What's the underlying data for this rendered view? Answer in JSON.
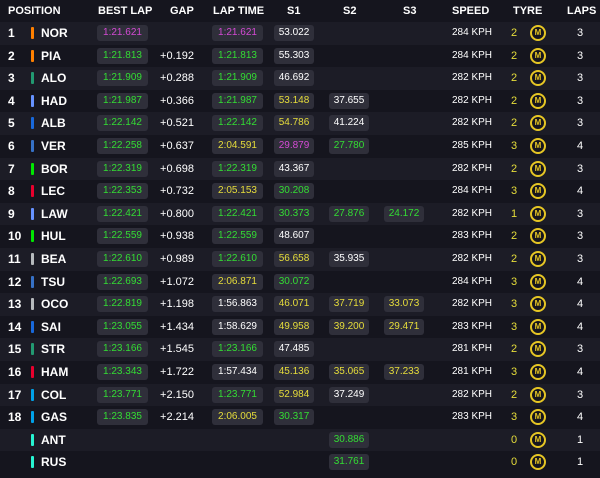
{
  "headers": {
    "position": "POSITION",
    "best_lap": "BEST LAP",
    "gap": "GAP",
    "lap_time": "LAP TIME",
    "s1": "S1",
    "s2": "S2",
    "s3": "S3",
    "speed": "SPEED",
    "tyre": "TYRE",
    "laps": "LAPS"
  },
  "colors": {
    "background": "#15151e",
    "personal_best": "#33dd33",
    "overall_best": "#d44ad4",
    "slower": "#e6dd3a",
    "normal": "#ffffff",
    "tyre_medium": "#e6c624"
  },
  "tyre_icon": "medium-compound-icon",
  "rows": [
    {
      "pos": "1",
      "driver": "NOR",
      "team_color": "#ff8000",
      "best": "1:21.621",
      "best_c": "purple",
      "gap": "",
      "lap": "1:21.621",
      "lap_c": "purple",
      "s1": "53.022",
      "s1_c": "white",
      "s2": "",
      "s2_c": "white",
      "s3": "",
      "s3_c": "white",
      "speed": "284 KPH",
      "tyre_age": "2",
      "tyre": "M",
      "laps": "3"
    },
    {
      "pos": "2",
      "driver": "PIA",
      "team_color": "#ff8000",
      "best": "1:21.813",
      "best_c": "green",
      "gap": "+0.192",
      "lap": "1:21.813",
      "lap_c": "green",
      "s1": "55.303",
      "s1_c": "white",
      "s2": "",
      "s2_c": "white",
      "s3": "",
      "s3_c": "white",
      "speed": "284 KPH",
      "tyre_age": "2",
      "tyre": "M",
      "laps": "3"
    },
    {
      "pos": "3",
      "driver": "ALO",
      "team_color": "#229971",
      "best": "1:21.909",
      "best_c": "green",
      "gap": "+0.288",
      "lap": "1:21.909",
      "lap_c": "green",
      "s1": "46.692",
      "s1_c": "white",
      "s2": "",
      "s2_c": "white",
      "s3": "",
      "s3_c": "white",
      "speed": "282 KPH",
      "tyre_age": "2",
      "tyre": "M",
      "laps": "3"
    },
    {
      "pos": "4",
      "driver": "HAD",
      "team_color": "#6692ff",
      "best": "1:21.987",
      "best_c": "green",
      "gap": "+0.366",
      "lap": "1:21.987",
      "lap_c": "green",
      "s1": "53.148",
      "s1_c": "yellow",
      "s2": "37.655",
      "s2_c": "white",
      "s3": "",
      "s3_c": "white",
      "speed": "282 KPH",
      "tyre_age": "2",
      "tyre": "M",
      "laps": "3"
    },
    {
      "pos": "5",
      "driver": "ALB",
      "team_color": "#1868db",
      "best": "1:22.142",
      "best_c": "green",
      "gap": "+0.521",
      "lap": "1:22.142",
      "lap_c": "green",
      "s1": "54.786",
      "s1_c": "yellow",
      "s2": "41.224",
      "s2_c": "white",
      "s3": "",
      "s3_c": "white",
      "speed": "282 KPH",
      "tyre_age": "2",
      "tyre": "M",
      "laps": "3"
    },
    {
      "pos": "6",
      "driver": "VER",
      "team_color": "#3671c6",
      "best": "1:22.258",
      "best_c": "green",
      "gap": "+0.637",
      "lap": "2:04.591",
      "lap_c": "yellow",
      "s1": "29.879",
      "s1_c": "purple",
      "s2": "27.780",
      "s2_c": "green",
      "s3": "",
      "s3_c": "white",
      "speed": "285 KPH",
      "tyre_age": "3",
      "tyre": "M",
      "laps": "4"
    },
    {
      "pos": "7",
      "driver": "BOR",
      "team_color": "#00e701",
      "best": "1:22.319",
      "best_c": "green",
      "gap": "+0.698",
      "lap": "1:22.319",
      "lap_c": "green",
      "s1": "43.367",
      "s1_c": "white",
      "s2": "",
      "s2_c": "white",
      "s3": "",
      "s3_c": "white",
      "speed": "282 KPH",
      "tyre_age": "2",
      "tyre": "M",
      "laps": "3"
    },
    {
      "pos": "8",
      "driver": "LEC",
      "team_color": "#e8002d",
      "best": "1:22.353",
      "best_c": "green",
      "gap": "+0.732",
      "lap": "2:05.153",
      "lap_c": "yellow",
      "s1": "30.208",
      "s1_c": "green",
      "s2": "",
      "s2_c": "white",
      "s3": "",
      "s3_c": "white",
      "speed": "284 KPH",
      "tyre_age": "3",
      "tyre": "M",
      "laps": "4"
    },
    {
      "pos": "9",
      "driver": "LAW",
      "team_color": "#6692ff",
      "best": "1:22.421",
      "best_c": "green",
      "gap": "+0.800",
      "lap": "1:22.421",
      "lap_c": "green",
      "s1": "30.373",
      "s1_c": "green",
      "s2": "27.876",
      "s2_c": "green",
      "s3": "24.172",
      "s3_c": "green",
      "speed": "282 KPH",
      "tyre_age": "1",
      "tyre": "M",
      "laps": "3"
    },
    {
      "pos": "10",
      "driver": "HUL",
      "team_color": "#00e701",
      "best": "1:22.559",
      "best_c": "green",
      "gap": "+0.938",
      "lap": "1:22.559",
      "lap_c": "green",
      "s1": "48.607",
      "s1_c": "white",
      "s2": "",
      "s2_c": "white",
      "s3": "",
      "s3_c": "white",
      "speed": "283 KPH",
      "tyre_age": "2",
      "tyre": "M",
      "laps": "3"
    },
    {
      "pos": "11",
      "driver": "BEA",
      "team_color": "#b6babd",
      "best": "1:22.610",
      "best_c": "green",
      "gap": "+0.989",
      "lap": "1:22.610",
      "lap_c": "green",
      "s1": "56.658",
      "s1_c": "yellow",
      "s2": "35.935",
      "s2_c": "white",
      "s3": "",
      "s3_c": "white",
      "speed": "282 KPH",
      "tyre_age": "2",
      "tyre": "M",
      "laps": "3"
    },
    {
      "pos": "12",
      "driver": "TSU",
      "team_color": "#3671c6",
      "best": "1:22.693",
      "best_c": "green",
      "gap": "+1.072",
      "lap": "2:06.871",
      "lap_c": "yellow",
      "s1": "30.072",
      "s1_c": "green",
      "s2": "",
      "s2_c": "white",
      "s3": "",
      "s3_c": "white",
      "speed": "284 KPH",
      "tyre_age": "3",
      "tyre": "M",
      "laps": "4"
    },
    {
      "pos": "13",
      "driver": "OCO",
      "team_color": "#b6babd",
      "best": "1:22.819",
      "best_c": "green",
      "gap": "+1.198",
      "lap": "1:56.863",
      "lap_c": "white",
      "s1": "46.071",
      "s1_c": "yellow",
      "s2": "37.719",
      "s2_c": "yellow",
      "s3": "33.073",
      "s3_c": "yellow",
      "speed": "282 KPH",
      "tyre_age": "3",
      "tyre": "M",
      "laps": "4"
    },
    {
      "pos": "14",
      "driver": "SAI",
      "team_color": "#1868db",
      "best": "1:23.055",
      "best_c": "green",
      "gap": "+1.434",
      "lap": "1:58.629",
      "lap_c": "white",
      "s1": "49.958",
      "s1_c": "yellow",
      "s2": "39.200",
      "s2_c": "yellow",
      "s3": "29.471",
      "s3_c": "yellow",
      "speed": "283 KPH",
      "tyre_age": "3",
      "tyre": "M",
      "laps": "4"
    },
    {
      "pos": "15",
      "driver": "STR",
      "team_color": "#229971",
      "best": "1:23.166",
      "best_c": "green",
      "gap": "+1.545",
      "lap": "1:23.166",
      "lap_c": "green",
      "s1": "47.485",
      "s1_c": "white",
      "s2": "",
      "s2_c": "white",
      "s3": "",
      "s3_c": "white",
      "speed": "281 KPH",
      "tyre_age": "2",
      "tyre": "M",
      "laps": "3"
    },
    {
      "pos": "16",
      "driver": "HAM",
      "team_color": "#e8002d",
      "best": "1:23.343",
      "best_c": "green",
      "gap": "+1.722",
      "lap": "1:57.434",
      "lap_c": "white",
      "s1": "45.136",
      "s1_c": "yellow",
      "s2": "35.065",
      "s2_c": "yellow",
      "s3": "37.233",
      "s3_c": "yellow",
      "speed": "281 KPH",
      "tyre_age": "3",
      "tyre": "M",
      "laps": "4"
    },
    {
      "pos": "17",
      "driver": "COL",
      "team_color": "#00a1e8",
      "best": "1:23.771",
      "best_c": "green",
      "gap": "+2.150",
      "lap": "1:23.771",
      "lap_c": "green",
      "s1": "52.984",
      "s1_c": "yellow",
      "s2": "37.249",
      "s2_c": "white",
      "s3": "",
      "s3_c": "white",
      "speed": "282 KPH",
      "tyre_age": "2",
      "tyre": "M",
      "laps": "3"
    },
    {
      "pos": "18",
      "driver": "GAS",
      "team_color": "#00a1e8",
      "best": "1:23.835",
      "best_c": "green",
      "gap": "+2.214",
      "lap": "2:06.005",
      "lap_c": "yellow",
      "s1": "30.317",
      "s1_c": "green",
      "s2": "",
      "s2_c": "white",
      "s3": "",
      "s3_c": "white",
      "speed": "283 KPH",
      "tyre_age": "3",
      "tyre": "M",
      "laps": "4"
    },
    {
      "pos": "",
      "driver": "ANT",
      "team_color": "#27f4d2",
      "best": "",
      "best_c": "white",
      "gap": "",
      "lap": "",
      "lap_c": "white",
      "s1": "",
      "s1_c": "white",
      "s2": "30.886",
      "s2_c": "green",
      "s3": "",
      "s3_c": "white",
      "speed": "",
      "tyre_age": "0",
      "tyre": "M",
      "laps": "1"
    },
    {
      "pos": "",
      "driver": "RUS",
      "team_color": "#27f4d2",
      "best": "",
      "best_c": "white",
      "gap": "",
      "lap": "",
      "lap_c": "white",
      "s1": "",
      "s1_c": "white",
      "s2": "31.761",
      "s2_c": "green",
      "s3": "",
      "s3_c": "white",
      "speed": "",
      "tyre_age": "0",
      "tyre": "M",
      "laps": "1"
    }
  ]
}
